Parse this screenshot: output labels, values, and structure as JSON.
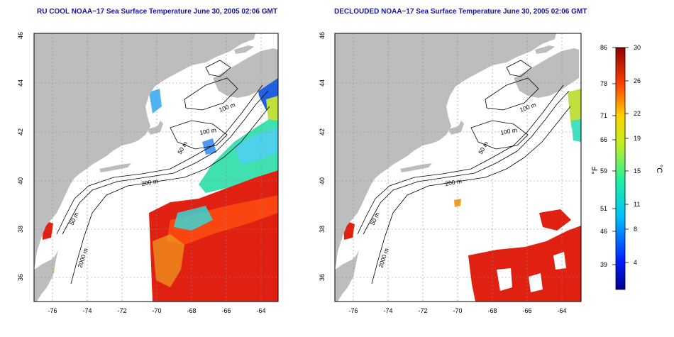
{
  "panels": [
    {
      "title": "RU COOL NOAA−17 Sea Surface Temperature June 30, 2005 02:06 GMT",
      "x_ticks": [
        "-76",
        "-74",
        "-72",
        "-70",
        "-68",
        "-66",
        "-64"
      ],
      "y_ticks": [
        "36",
        "38",
        "40",
        "42",
        "44",
        "46"
      ],
      "contour_labels": [
        "100 m",
        "100 m",
        "50 m",
        "200 m",
        "50 m",
        "2000 m"
      ]
    },
    {
      "title": "DECLOUDED NOAA−17 Sea Surface Temperature June 30, 2005 02:06 GMT",
      "x_ticks": [
        "-76",
        "-74",
        "-72",
        "-70",
        "-68",
        "-66",
        "-64"
      ],
      "y_ticks": [
        "36",
        "38",
        "40",
        "42",
        "44",
        "46"
      ],
      "contour_labels": [
        "100 m",
        "100 m",
        "50 m",
        "200 m",
        "50 m",
        "2000 m"
      ]
    }
  ],
  "colorbar": {
    "f_ticks": [
      "86",
      "78",
      "71",
      "66",
      "59",
      "51",
      "46",
      "39"
    ],
    "c_ticks": [
      "30",
      "26",
      "22",
      "19",
      "15",
      "11",
      "8",
      "4"
    ],
    "f_label": "°F",
    "c_label": "°C",
    "range_c": [
      0,
      30
    ]
  },
  "colors": {
    "land": "#bdbdbd",
    "title": "#1414a0",
    "ocean_warm": "#e02010",
    "ocean_mid": "#40e0a0",
    "ocean_cool": "#2060e0"
  }
}
